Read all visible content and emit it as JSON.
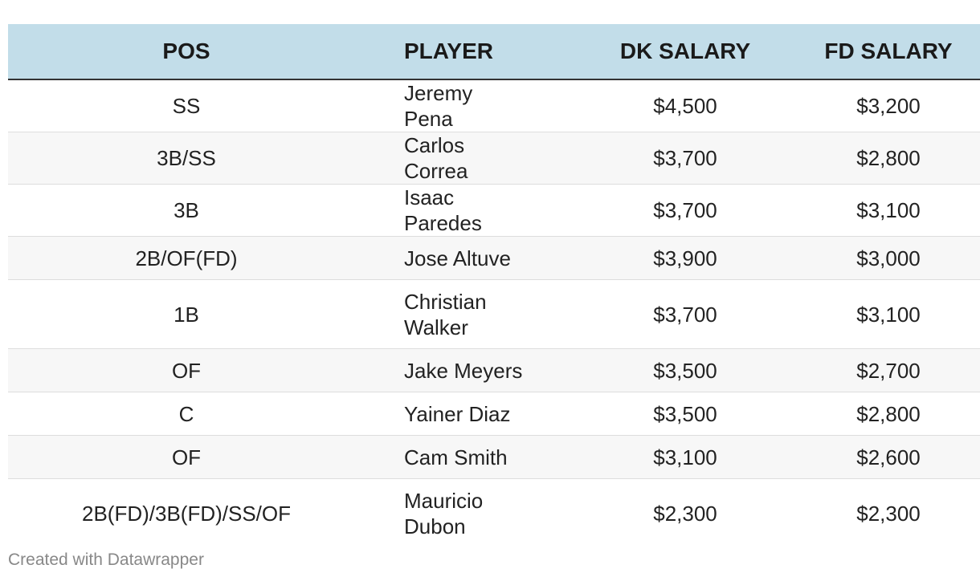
{
  "table": {
    "headers": {
      "pos": "POS",
      "player": "PLAYER",
      "dk_salary": "DK SALARY",
      "fd_salary": "FD SALARY"
    },
    "rows": [
      {
        "pos": "SS",
        "player": "Jeremy Pena",
        "dk": "$4,500",
        "fd": "$3,200"
      },
      {
        "pos": "3B/SS",
        "player": "Carlos Correa",
        "dk": "$3,700",
        "fd": "$2,800"
      },
      {
        "pos": "3B",
        "player": "Isaac Paredes",
        "dk": "$3,700",
        "fd": "$3,100"
      },
      {
        "pos": "2B/OF(FD)",
        "player": "Jose Altuve",
        "dk": "$3,900",
        "fd": "$3,000"
      },
      {
        "pos": "1B",
        "player": "Christian Walker",
        "dk": "$3,700",
        "fd": "$3,100"
      },
      {
        "pos": "OF",
        "player": "Jake Meyers",
        "dk": "$3,500",
        "fd": "$2,700"
      },
      {
        "pos": "C",
        "player": "Yainer Diaz",
        "dk": "$3,500",
        "fd": "$2,800"
      },
      {
        "pos": "OF",
        "player": "Cam Smith",
        "dk": "$3,100",
        "fd": "$2,600"
      },
      {
        "pos": "2B(FD)/3B(FD)/SS/OF",
        "player": "Mauricio Dubon",
        "dk": "$2,300",
        "fd": "$2,300"
      }
    ]
  },
  "footer": {
    "credit": "Created with Datawrapper"
  },
  "colors": {
    "header_bg": "#c2dde9",
    "stripe_bg": "#f7f7f7",
    "text": "#222222",
    "footer_text": "#888888"
  }
}
